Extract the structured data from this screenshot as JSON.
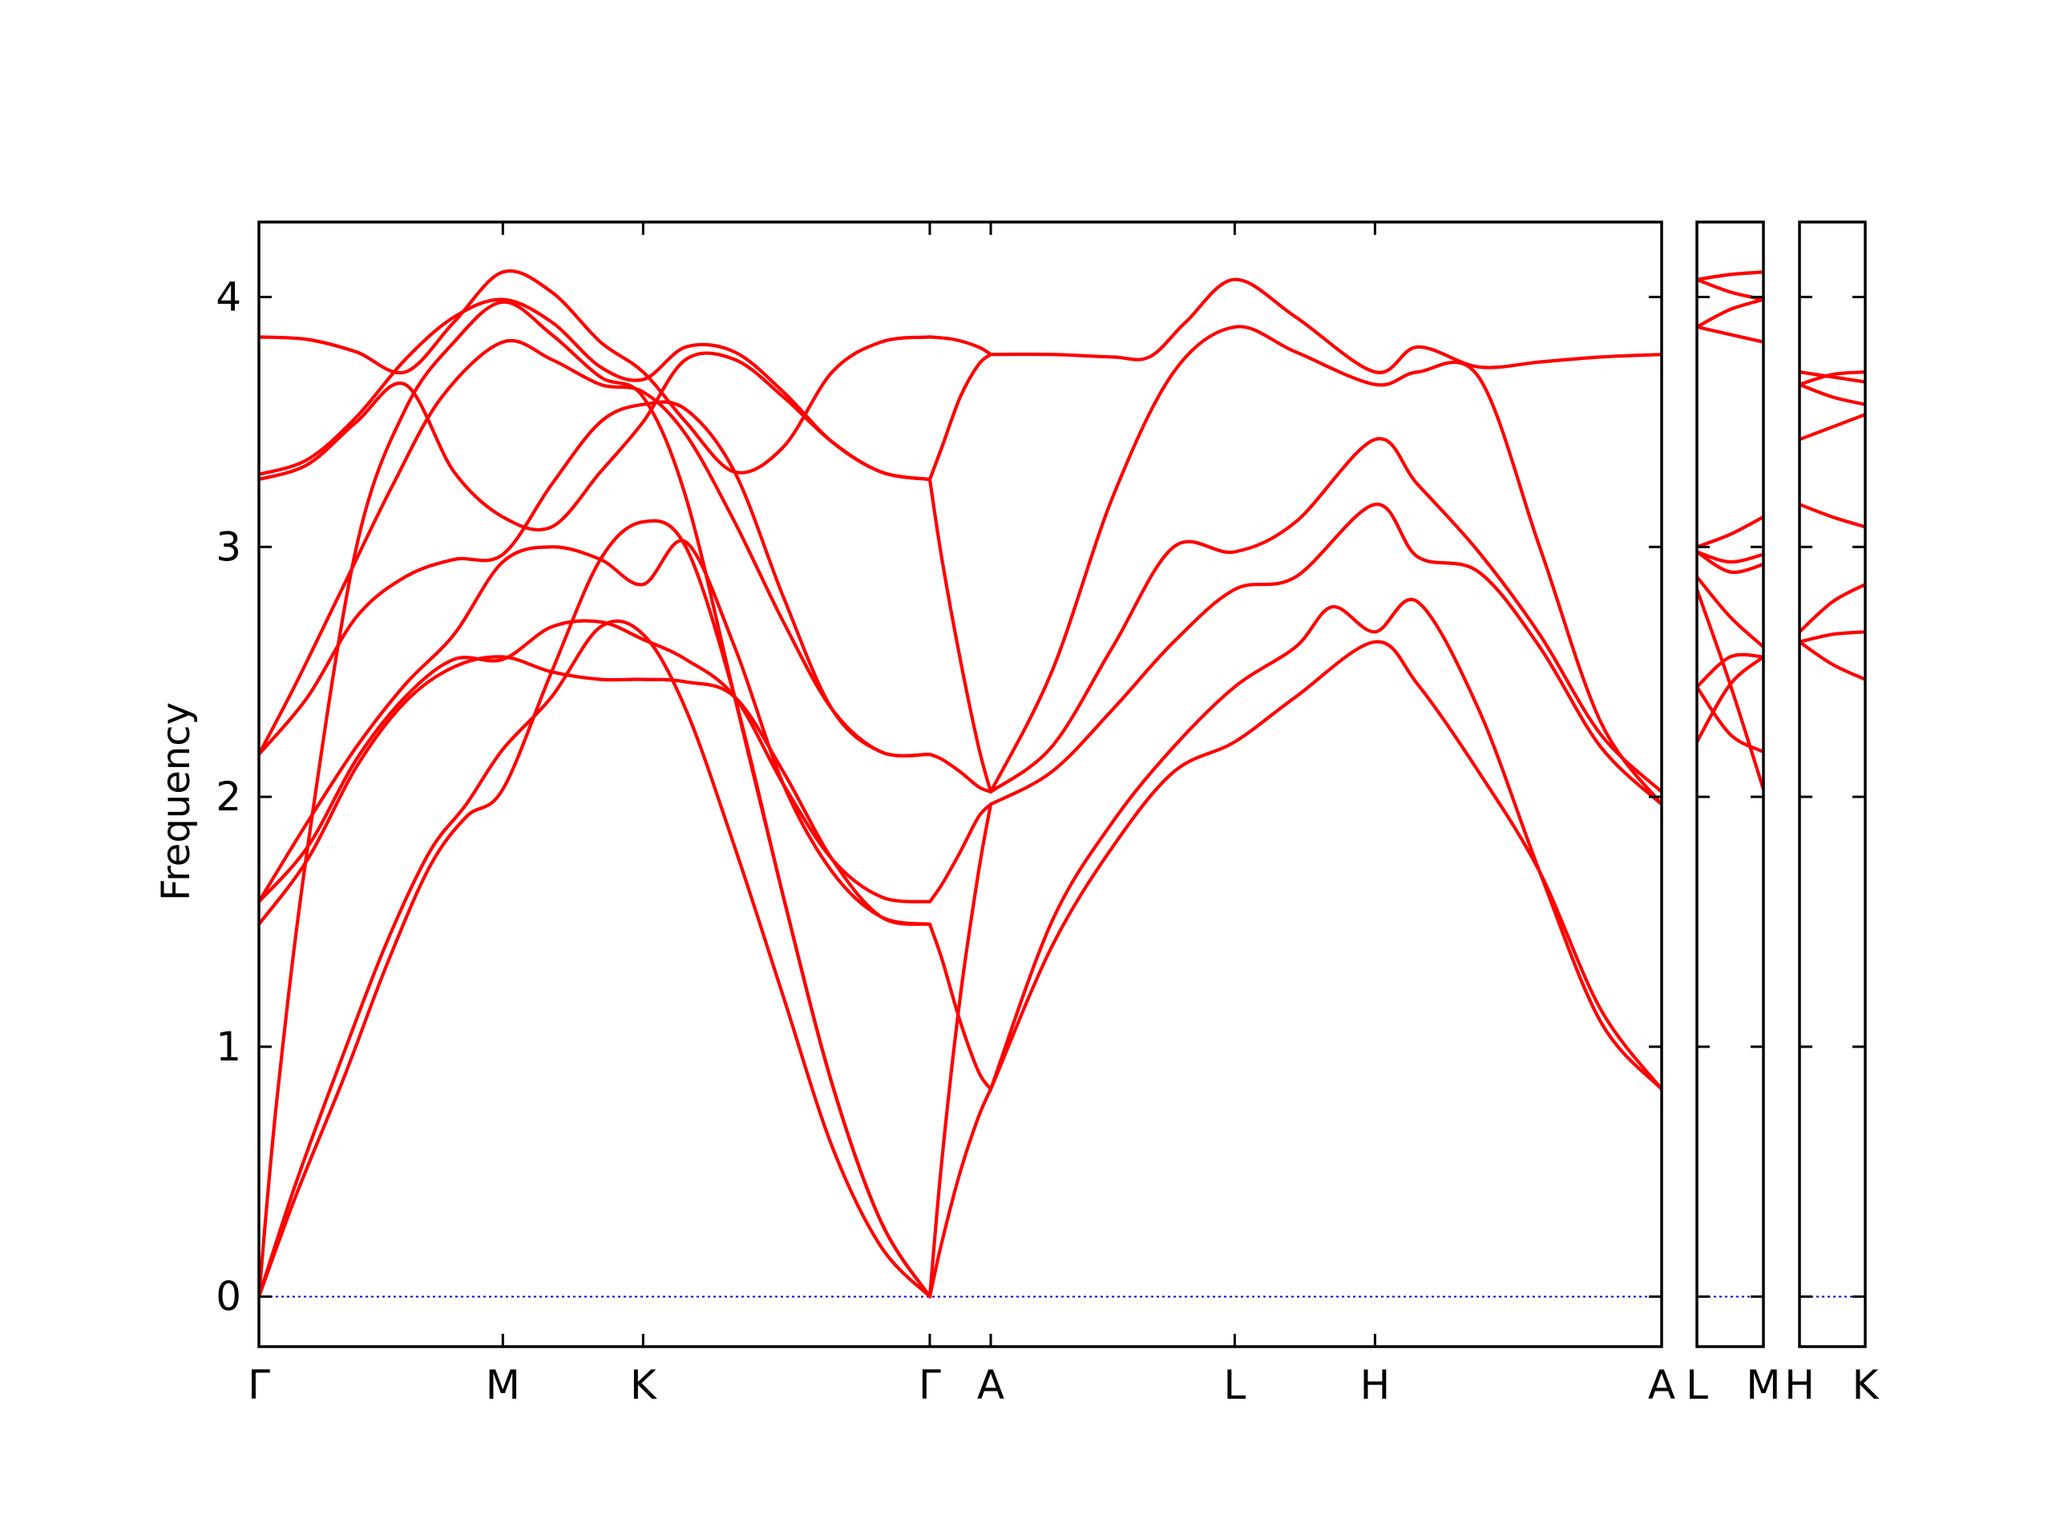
{
  "chart_data": {
    "type": "line",
    "title": "",
    "ylabel": "Frequency",
    "xlabel": "",
    "ylim": [
      -0.2,
      4.3
    ],
    "yticks": [
      "0",
      "1",
      "2",
      "3",
      "4"
    ],
    "grid": false,
    "line_color": "#ff0000",
    "zero_line_color": "#0000cc",
    "panels": [
      {
        "x_range": [
          0,
          11.5
        ],
        "labels": [
          {
            "pos": 0,
            "text": "Γ"
          },
          {
            "pos": 2.0,
            "text": "M"
          },
          {
            "pos": 3.15,
            "text": "K"
          },
          {
            "pos": 5.5,
            "text": "Γ"
          },
          {
            "pos": 6.0,
            "text": "A"
          },
          {
            "pos": 8.0,
            "text": "L"
          },
          {
            "pos": 9.15,
            "text": "H"
          },
          {
            "pos": 11.5,
            "text": "A"
          }
        ]
      },
      {
        "x_range": [
          0,
          1
        ],
        "labels": [
          {
            "pos": 0,
            "text": "L"
          },
          {
            "pos": 1,
            "text": "M"
          }
        ]
      },
      {
        "x_range": [
          0,
          1
        ],
        "labels": [
          {
            "pos": 0,
            "text": "H"
          },
          {
            "pos": 1,
            "text": "K"
          }
        ]
      }
    ],
    "series": [
      {
        "panel": 0,
        "x": [
          0,
          0.3,
          0.7,
          1.05,
          1.4,
          1.7,
          2.0,
          2.4,
          2.8,
          3.15,
          3.5,
          3.9,
          4.3,
          4.7,
          5.1,
          5.5
        ],
        "y": [
          0,
          0.4,
          0.88,
          1.33,
          1.72,
          1.92,
          2.03,
          2.5,
          2.95,
          3.1,
          3.0,
          2.4,
          1.6,
          0.85,
          0.3,
          0
        ]
      },
      {
        "panel": 0,
        "x": [
          0,
          0.3,
          0.7,
          1.05,
          1.4,
          1.7,
          2.0,
          2.4,
          2.8,
          3.15,
          3.5,
          3.9,
          4.3,
          4.7,
          5.1,
          5.5
        ],
        "y": [
          0,
          0.45,
          0.98,
          1.42,
          1.78,
          1.97,
          2.19,
          2.4,
          2.68,
          2.65,
          2.35,
          1.8,
          1.2,
          0.6,
          0.2,
          0
        ]
      },
      {
        "panel": 0,
        "x": [
          0,
          0.15,
          0.4,
          0.8,
          1.2,
          1.6,
          2.0,
          2.4,
          2.8,
          3.15,
          3.5,
          3.9,
          4.3,
          4.7,
          5.1,
          5.5
        ],
        "y": [
          0,
          0.8,
          1.8,
          3.0,
          3.55,
          3.82,
          3.98,
          3.85,
          3.68,
          3.6,
          3.2,
          2.4,
          1.6,
          0.85,
          0.3,
          0
        ]
      },
      {
        "panel": 0,
        "x": [
          0,
          0.4,
          0.8,
          1.2,
          1.6,
          2.0,
          2.4,
          2.8,
          3.15,
          3.5,
          3.9,
          4.3,
          4.7,
          5.1,
          5.5
        ],
        "y": [
          1.49,
          1.75,
          2.12,
          2.38,
          2.52,
          2.56,
          2.5,
          2.47,
          2.47,
          2.46,
          2.4,
          2.1,
          1.75,
          1.52,
          1.49
        ]
      },
      {
        "panel": 0,
        "x": [
          0,
          0.4,
          0.8,
          1.2,
          1.6,
          2.0,
          2.4,
          2.8,
          3.15,
          3.5,
          3.9,
          4.3,
          4.7,
          5.1,
          5.5
        ],
        "y": [
          1.58,
          1.8,
          2.15,
          2.4,
          2.55,
          2.55,
          2.68,
          2.7,
          2.63,
          2.55,
          2.4,
          2.05,
          1.75,
          1.6,
          1.58
        ]
      },
      {
        "panel": 0,
        "x": [
          0,
          0.4,
          0.8,
          1.2,
          1.6,
          2.0,
          2.4,
          2.8,
          3.15,
          3.5,
          3.9,
          4.3,
          4.7,
          5.1,
          5.5
        ],
        "y": [
          1.58,
          1.9,
          2.2,
          2.45,
          2.65,
          2.94,
          3.0,
          2.95,
          2.85,
          3.02,
          2.6,
          2.05,
          1.7,
          1.52,
          1.49
        ]
      },
      {
        "panel": 0,
        "x": [
          0,
          0.4,
          0.8,
          1.2,
          1.6,
          2.0,
          2.4,
          2.8,
          3.15,
          3.5,
          3.9,
          4.3,
          4.7,
          5.1,
          5.5
        ],
        "y": [
          2.17,
          2.4,
          2.72,
          2.88,
          2.95,
          2.97,
          3.25,
          3.5,
          3.57,
          3.55,
          3.3,
          2.8,
          2.35,
          2.18,
          2.17
        ]
      },
      {
        "panel": 0,
        "x": [
          0,
          0.3,
          0.7,
          1.1,
          1.5,
          2.0,
          2.4,
          2.8,
          3.15,
          3.5,
          3.9,
          4.3,
          4.7,
          5.1,
          5.5
        ],
        "y": [
          2.17,
          2.45,
          2.85,
          3.25,
          3.6,
          3.82,
          3.75,
          3.65,
          3.62,
          3.45,
          3.1,
          2.7,
          2.35,
          2.18,
          2.17
        ]
      },
      {
        "panel": 0,
        "x": [
          0,
          0.4,
          0.8,
          1.2,
          1.6,
          2.0,
          2.4,
          2.8,
          3.15,
          3.5,
          3.9,
          4.3,
          4.7,
          5.1,
          5.5
        ],
        "y": [
          3.27,
          3.33,
          3.5,
          3.65,
          3.3,
          3.12,
          3.08,
          3.3,
          3.5,
          3.75,
          3.75,
          3.6,
          3.42,
          3.3,
          3.27
        ]
      },
      {
        "panel": 0,
        "x": [
          0,
          0.4,
          0.8,
          1.2,
          1.6,
          2.0,
          2.4,
          2.8,
          3.15,
          3.5,
          3.9,
          4.3,
          4.7,
          5.1,
          5.5
        ],
        "y": [
          3.29,
          3.35,
          3.52,
          3.75,
          3.92,
          3.99,
          3.9,
          3.72,
          3.67,
          3.8,
          3.78,
          3.62,
          3.42,
          3.3,
          3.27
        ]
      },
      {
        "panel": 0,
        "x": [
          0,
          0.4,
          0.8,
          1.2,
          1.6,
          2.0,
          2.4,
          2.8,
          3.15,
          3.5,
          3.9,
          4.3,
          4.7,
          5.1,
          5.5
        ],
        "y": [
          3.84,
          3.83,
          3.78,
          3.7,
          3.9,
          4.1,
          4.02,
          3.82,
          3.7,
          3.5,
          3.3,
          3.4,
          3.7,
          3.82,
          3.84
        ]
      },
      {
        "panel": 0,
        "x": [
          5.5,
          5.6,
          5.75,
          5.9,
          6.0
        ],
        "y": [
          0,
          0.22,
          0.5,
          0.72,
          0.83
        ]
      },
      {
        "panel": 0,
        "x": [
          5.5,
          5.6,
          5.75,
          5.9,
          6.0
        ],
        "y": [
          0,
          0.55,
          1.2,
          1.7,
          1.97
        ]
      },
      {
        "panel": 0,
        "x": [
          5.5,
          5.6,
          5.75,
          5.9,
          6.0
        ],
        "y": [
          1.49,
          1.35,
          1.1,
          0.9,
          0.83
        ]
      },
      {
        "panel": 0,
        "x": [
          5.5,
          5.6,
          5.75,
          5.9,
          6.0
        ],
        "y": [
          1.58,
          1.65,
          1.78,
          1.92,
          1.97
        ]
      },
      {
        "panel": 0,
        "x": [
          5.5,
          5.6,
          5.75,
          5.9,
          6.0
        ],
        "y": [
          2.17,
          2.15,
          2.1,
          2.04,
          2.02
        ]
      },
      {
        "panel": 0,
        "x": [
          5.5,
          5.6,
          5.75,
          5.9,
          6.0
        ],
        "y": [
          3.27,
          2.95,
          2.55,
          2.2,
          2.02
        ]
      },
      {
        "panel": 0,
        "x": [
          5.5,
          5.6,
          5.75,
          5.9,
          6.0
        ],
        "y": [
          3.27,
          3.4,
          3.6,
          3.73,
          3.77
        ]
      },
      {
        "panel": 0,
        "x": [
          5.5,
          5.7,
          5.9,
          6.0
        ],
        "y": [
          3.84,
          3.83,
          3.8,
          3.77
        ]
      },
      {
        "panel": 0,
        "x": [
          6.0,
          6.5,
          7.0,
          7.5,
          8.0,
          8.5,
          9.15,
          9.5,
          10.0,
          10.5,
          11.0,
          11.5
        ],
        "y": [
          0.83,
          1.4,
          1.8,
          2.1,
          2.22,
          2.4,
          2.62,
          2.45,
          2.1,
          1.7,
          1.15,
          0.83
        ]
      },
      {
        "panel": 0,
        "x": [
          6.0,
          6.5,
          7.0,
          7.5,
          8.0,
          8.5,
          8.8,
          9.15,
          9.5,
          10.0,
          10.5,
          11.0,
          11.5
        ],
        "y": [
          0.83,
          1.5,
          1.9,
          2.2,
          2.44,
          2.6,
          2.76,
          2.66,
          2.78,
          2.35,
          1.7,
          1.1,
          0.83
        ]
      },
      {
        "panel": 0,
        "x": [
          6.0,
          6.5,
          7.0,
          7.5,
          8.0,
          8.5,
          9.15,
          9.5,
          10.0,
          10.5,
          11.0,
          11.5
        ],
        "y": [
          1.97,
          2.1,
          2.35,
          2.62,
          2.83,
          2.88,
          3.17,
          2.96,
          2.9,
          2.6,
          2.2,
          1.97
        ]
      },
      {
        "panel": 0,
        "x": [
          6.0,
          6.5,
          7.0,
          7.5,
          8.0,
          8.5,
          9.15,
          9.5,
          10.0,
          10.5,
          11.0,
          11.5
        ],
        "y": [
          2.02,
          2.2,
          2.6,
          3.0,
          2.98,
          3.1,
          3.43,
          3.25,
          2.98,
          2.65,
          2.25,
          2.02
        ]
      },
      {
        "panel": 0,
        "x": [
          6.0,
          6.5,
          7.0,
          7.5,
          8.0,
          8.5,
          9.15,
          9.5,
          10.0,
          10.5,
          11.0,
          11.5
        ],
        "y": [
          2.02,
          2.5,
          3.2,
          3.7,
          3.88,
          3.78,
          3.65,
          3.7,
          3.68,
          3.0,
          2.3,
          1.97
        ]
      },
      {
        "panel": 0,
        "x": [
          6.0,
          6.5,
          7.0,
          7.3,
          7.6,
          8.0,
          8.5,
          9.15,
          9.5,
          10.0,
          10.5,
          11.0,
          11.5
        ],
        "y": [
          3.77,
          3.77,
          3.76,
          3.76,
          3.9,
          4.07,
          3.92,
          3.7,
          3.8,
          3.72,
          3.74,
          3.76,
          3.77
        ]
      },
      {
        "panel": 1,
        "x": [
          0,
          0.5,
          1
        ],
        "y": [
          2.22,
          2.45,
          2.56
        ]
      },
      {
        "panel": 1,
        "x": [
          0,
          0.5,
          1
        ],
        "y": [
          2.44,
          2.25,
          2.18
        ]
      },
      {
        "panel": 1,
        "x": [
          0,
          0.5,
          1
        ],
        "y": [
          2.44,
          2.56,
          2.56
        ]
      },
      {
        "panel": 1,
        "x": [
          0,
          0.5,
          1
        ],
        "y": [
          2.83,
          2.45,
          2.03
        ]
      },
      {
        "panel": 1,
        "x": [
          0,
          0.5,
          1
        ],
        "y": [
          2.88,
          2.72,
          2.6
        ]
      },
      {
        "panel": 1,
        "x": [
          0,
          0.5,
          1
        ],
        "y": [
          2.98,
          2.94,
          2.97
        ]
      },
      {
        "panel": 1,
        "x": [
          0,
          0.5,
          1
        ],
        "y": [
          2.98,
          2.9,
          2.93
        ]
      },
      {
        "panel": 1,
        "x": [
          0,
          0.5,
          1
        ],
        "y": [
          3.0,
          3.05,
          3.12
        ]
      },
      {
        "panel": 1,
        "x": [
          0,
          0.5,
          1
        ],
        "y": [
          3.88,
          3.85,
          3.82
        ]
      },
      {
        "panel": 1,
        "x": [
          0,
          0.5,
          1
        ],
        "y": [
          3.88,
          3.95,
          3.99
        ]
      },
      {
        "panel": 1,
        "x": [
          0,
          0.5,
          1
        ],
        "y": [
          4.07,
          4.02,
          3.99
        ]
      },
      {
        "panel": 1,
        "x": [
          0,
          0.5,
          1
        ],
        "y": [
          4.07,
          4.09,
          4.1
        ]
      },
      {
        "panel": 2,
        "x": [
          0,
          0.5,
          1
        ],
        "y": [
          2.62,
          2.53,
          2.47
        ]
      },
      {
        "panel": 2,
        "x": [
          0,
          0.5,
          1
        ],
        "y": [
          2.62,
          2.65,
          2.66
        ]
      },
      {
        "panel": 2,
        "x": [
          0,
          0.5,
          1
        ],
        "y": [
          2.66,
          2.78,
          2.85
        ]
      },
      {
        "panel": 2,
        "x": [
          0,
          0.5,
          1
        ],
        "y": [
          3.17,
          3.12,
          3.08
        ]
      },
      {
        "panel": 2,
        "x": [
          0,
          0.5,
          1
        ],
        "y": [
          3.43,
          3.48,
          3.53
        ]
      },
      {
        "panel": 2,
        "x": [
          0,
          0.5,
          1
        ],
        "y": [
          3.65,
          3.6,
          3.57
        ]
      },
      {
        "panel": 2,
        "x": [
          0,
          0.5,
          1
        ],
        "y": [
          3.65,
          3.69,
          3.7
        ]
      },
      {
        "panel": 2,
        "x": [
          0,
          0.5,
          1
        ],
        "y": [
          3.7,
          3.68,
          3.66
        ]
      }
    ]
  }
}
